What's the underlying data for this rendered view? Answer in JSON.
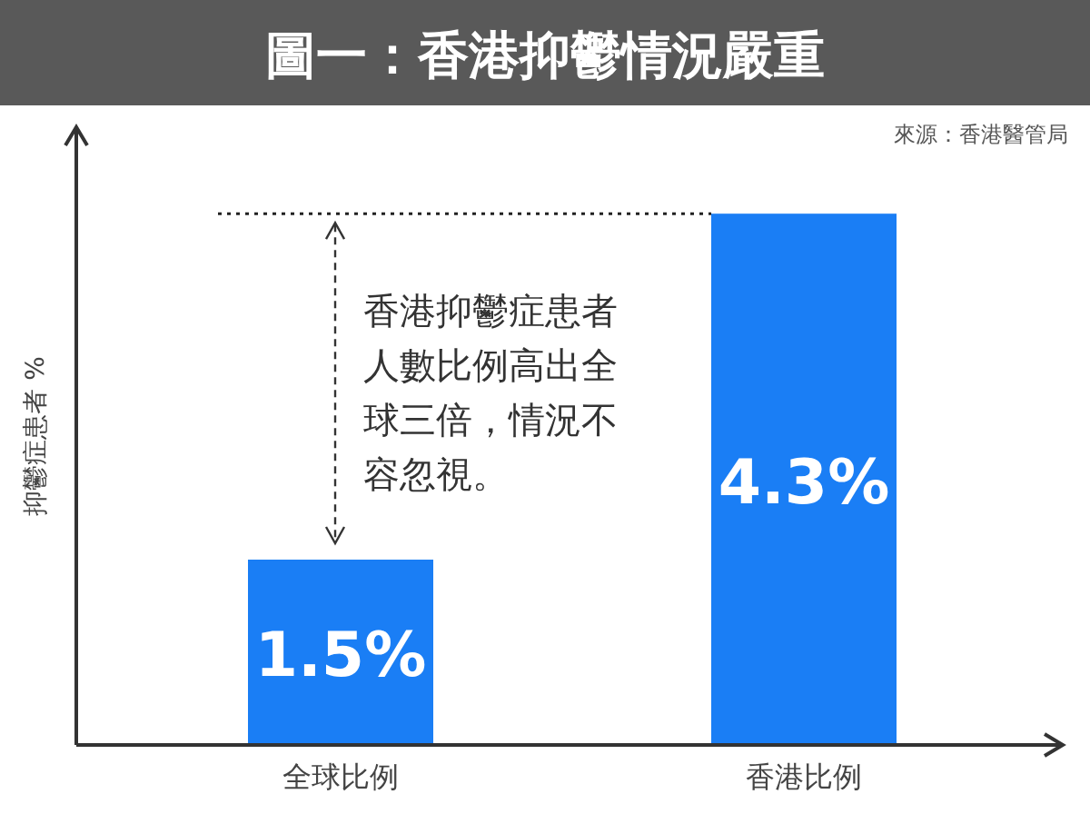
{
  "chart_data": {
    "type": "bar",
    "title": "圖一：香港抑鬱情況嚴重",
    "categories": [
      "全球比例",
      "香港比例"
    ],
    "values": [
      1.5,
      4.3
    ],
    "value_labels": [
      "1.5%",
      "4.3%"
    ],
    "color": "#1a7ef5",
    "ylabel": "抑鬱症患者 %",
    "ylim": [
      0,
      5
    ],
    "tick_labels": "x",
    "ref_lines": [
      {
        "axis": "y",
        "value": 4.3,
        "line_style": "dotted",
        "color": "#222222"
      }
    ],
    "annotations": [
      "來源：香港醫管局",
      "香港抑鬱症患者人數比例高出全球三倍，情況不容忽視。"
    ]
  }
}
